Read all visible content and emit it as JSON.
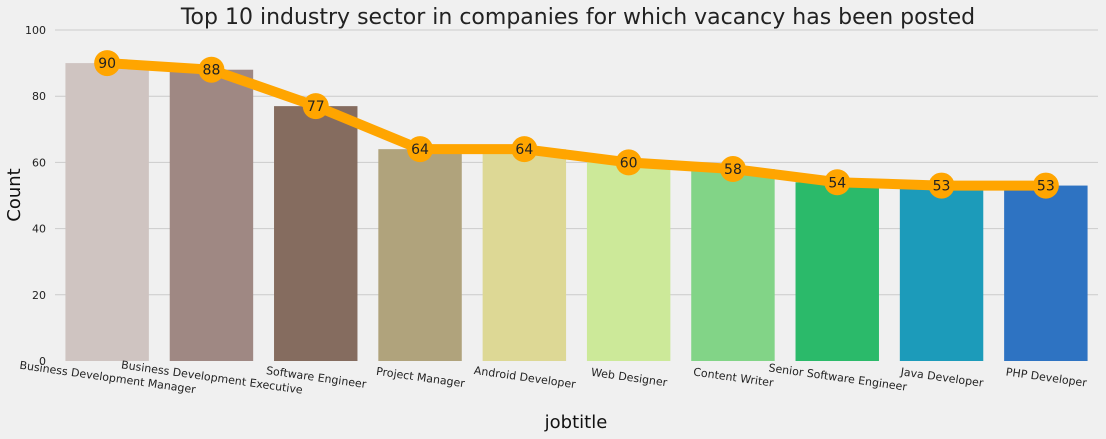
{
  "chart_data": {
    "type": "bar",
    "title": "Top 10 industry sector in companies for which vacancy has been posted",
    "xlabel": "jobtitle",
    "ylabel": "Count",
    "ylim": [
      0,
      100
    ],
    "yticks": [
      "0",
      "20",
      "40",
      "60",
      "80",
      "100"
    ],
    "grid": true,
    "categories": [
      "Business Development Manager",
      "Business Development Executive",
      "Software Engineer",
      "Project Manager",
      "Android Developer",
      "Web Designer",
      "Content Writer",
      "Senior Software Engineer",
      "Java Developer",
      "PHP Developer"
    ],
    "values": [
      90,
      88,
      77,
      64,
      64,
      60,
      58,
      54,
      53,
      53
    ],
    "bar_colors": [
      "#cfc4c1",
      "#9f8883",
      "#856c5f",
      "#b0a37c",
      "#ddd895",
      "#cce999",
      "#82d487",
      "#2bba6a",
      "#1c9bba",
      "#2e73c2"
    ],
    "overlay_line": {
      "type": "line",
      "color": "#ffa500",
      "values": [
        90,
        88,
        77,
        64,
        64,
        60,
        58,
        54,
        53,
        53
      ]
    }
  }
}
